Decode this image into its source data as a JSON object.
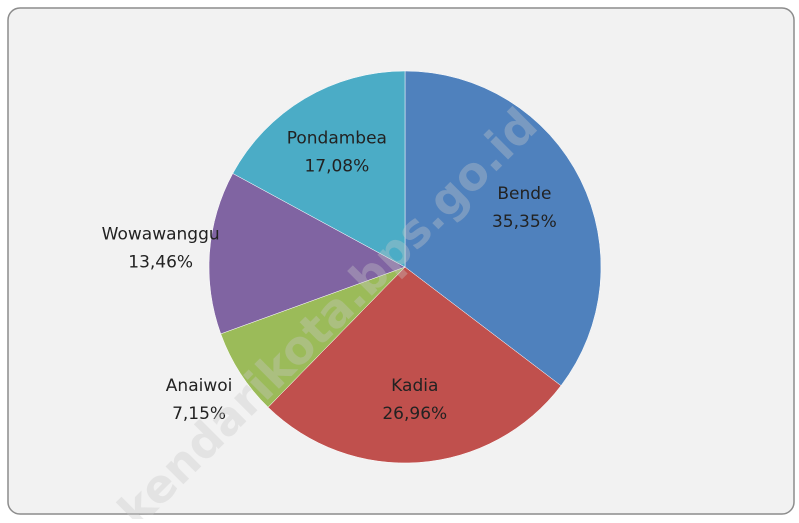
{
  "chart_data": {
    "type": "pie",
    "categories": [
      "Bende",
      "Kadia",
      "Anaiwoi",
      "Wowawanggu",
      "Pondambea"
    ],
    "values": [
      35.35,
      26.96,
      7.15,
      13.46,
      17.08
    ],
    "value_labels": [
      "35,35%",
      "26,96%",
      "7,15%",
      "13,46%",
      "17,08%"
    ],
    "colors": [
      "#4f81bd",
      "#c0504d",
      "#9bbb59",
      "#8064a2",
      "#4bacc6"
    ],
    "watermark": "kendarikota.bps.go.id"
  }
}
